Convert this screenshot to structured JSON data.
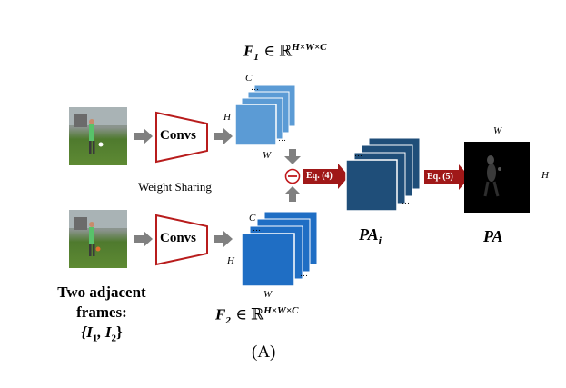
{
  "diagram": {
    "conv_label": "Convs",
    "weight_sharing_label": "Weight Sharing",
    "eq4_label": "Eq. (4)",
    "eq5_label": "Eq. (5)",
    "minus_symbol": "⊖",
    "f1_main": "F",
    "f1_sub": "1",
    "f1_rel": "∈ ℝ",
    "f1_sup": "H×W×C",
    "f2_main": "F",
    "f2_sub": "2",
    "f2_rel": "∈ ℝ",
    "f2_sup": "H×W×C",
    "dim_c": "C",
    "dim_h": "H",
    "dim_w": "W",
    "pai_main": "PA",
    "pai_sub": "i",
    "pa_label": "PA",
    "two_frames_line1": "Two adjacent",
    "two_frames_line2": "frames:",
    "two_frames_line3": "{I",
    "two_frames_sub1": "1",
    "two_frames_sep": ", I",
    "two_frames_sub2": "2",
    "two_frames_close": "}",
    "caption": "(A)",
    "dots": "…",
    "colors": {
      "conv_border": "#b81c1c",
      "arrow_gray": "#808080",
      "red_arrow": "#a01818",
      "f1_fill": "#5b9bd5",
      "f2_fill": "#1f6ec4",
      "pai_fill": "#1f4e79",
      "pa_fill": "#000000"
    }
  }
}
